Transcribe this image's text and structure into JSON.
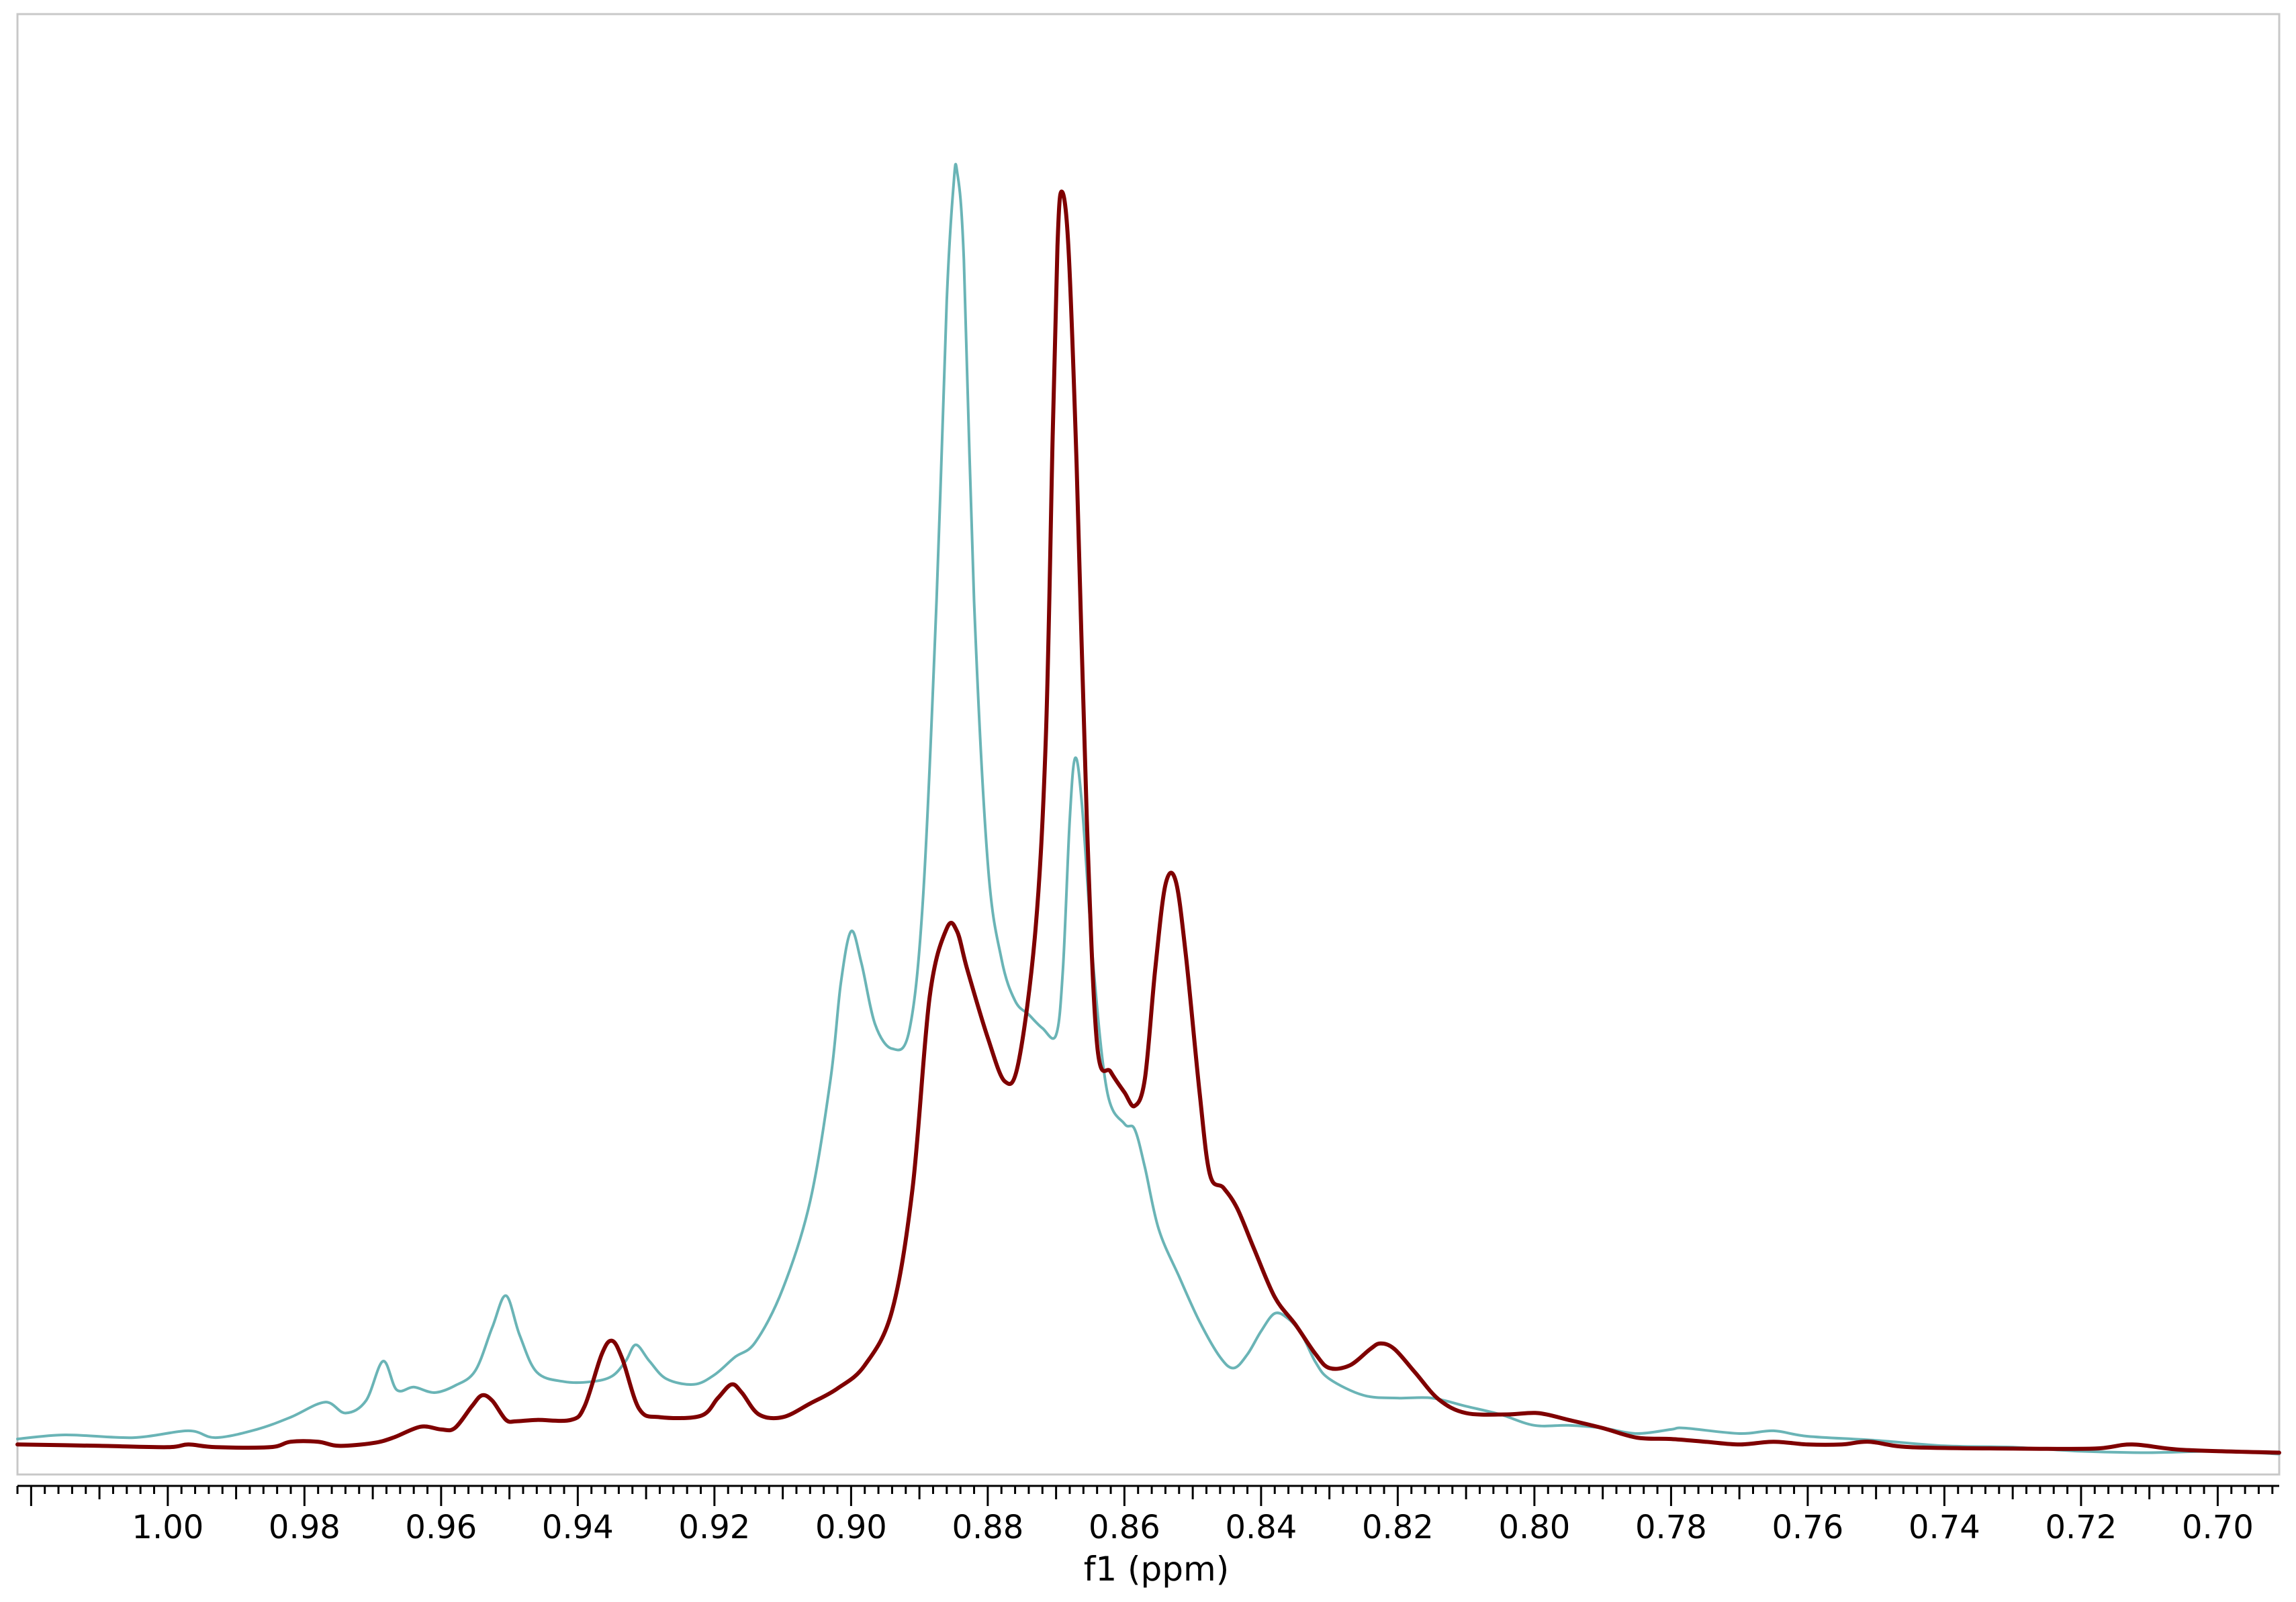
{
  "chart_data": {
    "type": "line",
    "title": "",
    "xlabel": "f1 (ppm)",
    "ylabel": "",
    "x_reversed": true,
    "xlim": [
      1.022,
      0.691
    ],
    "ylim": [
      -0.02,
      1.05
    ],
    "grid": false,
    "legend": "none",
    "x_ticks": [
      1.0,
      0.98,
      0.96,
      0.94,
      0.92,
      0.9,
      0.88,
      0.86,
      0.84,
      0.82,
      0.8,
      0.78,
      0.76,
      0.74,
      0.72,
      0.7
    ],
    "x_tick_labels": [
      "1.00",
      "0.98",
      "0.96",
      "0.94",
      "0.92",
      "0.90",
      "0.88",
      "0.86",
      "0.84",
      "0.82",
      "0.80",
      "0.78",
      "0.76",
      "0.74",
      "0.72",
      "0.70"
    ],
    "series": [
      {
        "color": "#6ab4b6",
        "stroke": "thin",
        "points": [
          [
            1.022,
            0.006
          ],
          [
            1.015,
            0.009
          ],
          [
            1.005,
            0.007
          ],
          [
            0.997,
            0.012
          ],
          [
            0.993,
            0.007
          ],
          [
            0.987,
            0.013
          ],
          [
            0.982,
            0.022
          ],
          [
            0.977,
            0.033
          ],
          [
            0.974,
            0.025
          ],
          [
            0.971,
            0.034
          ],
          [
            0.9685,
            0.063
          ],
          [
            0.9665,
            0.042
          ],
          [
            0.964,
            0.044
          ],
          [
            0.961,
            0.04
          ],
          [
            0.958,
            0.045
          ],
          [
            0.955,
            0.056
          ],
          [
            0.9525,
            0.088
          ],
          [
            0.9505,
            0.111
          ],
          [
            0.9485,
            0.082
          ],
          [
            0.946,
            0.055
          ],
          [
            0.942,
            0.048
          ],
          [
            0.938,
            0.048
          ],
          [
            0.935,
            0.052
          ],
          [
            0.933,
            0.063
          ],
          [
            0.9315,
            0.075
          ],
          [
            0.9295,
            0.063
          ],
          [
            0.927,
            0.05
          ],
          [
            0.923,
            0.046
          ],
          [
            0.92,
            0.053
          ],
          [
            0.917,
            0.066
          ],
          [
            0.914,
            0.077
          ],
          [
            0.91,
            0.116
          ],
          [
            0.906,
            0.18
          ],
          [
            0.903,
            0.27
          ],
          [
            0.9015,
            0.34
          ],
          [
            0.9,
            0.378
          ],
          [
            0.8985,
            0.355
          ],
          [
            0.8965,
            0.31
          ],
          [
            0.894,
            0.292
          ],
          [
            0.8915,
            0.305
          ],
          [
            0.8895,
            0.4
          ],
          [
            0.8875,
            0.62
          ],
          [
            0.886,
            0.84
          ],
          [
            0.885,
            0.925
          ],
          [
            0.8845,
            0.935
          ],
          [
            0.8835,
            0.87
          ],
          [
            0.882,
            0.62
          ],
          [
            0.88,
            0.428
          ],
          [
            0.878,
            0.358
          ],
          [
            0.876,
            0.327
          ],
          [
            0.874,
            0.317
          ],
          [
            0.872,
            0.307
          ],
          [
            0.87,
            0.302
          ],
          [
            0.869,
            0.35
          ],
          [
            0.868,
            0.46
          ],
          [
            0.8672,
            0.505
          ],
          [
            0.8662,
            0.47
          ],
          [
            0.8645,
            0.35
          ],
          [
            0.8625,
            0.26
          ],
          [
            0.86,
            0.237
          ],
          [
            0.8585,
            0.233
          ],
          [
            0.857,
            0.205
          ],
          [
            0.855,
            0.16
          ],
          [
            0.852,
            0.125
          ],
          [
            0.849,
            0.092
          ],
          [
            0.846,
            0.066
          ],
          [
            0.844,
            0.058
          ],
          [
            0.842,
            0.068
          ],
          [
            0.84,
            0.085
          ],
          [
            0.838,
            0.098
          ],
          [
            0.836,
            0.094
          ],
          [
            0.834,
            0.082
          ],
          [
            0.832,
            0.062
          ],
          [
            0.83,
            0.05
          ],
          [
            0.825,
            0.038
          ],
          [
            0.82,
            0.036
          ],
          [
            0.815,
            0.036
          ],
          [
            0.81,
            0.03
          ],
          [
            0.805,
            0.024
          ],
          [
            0.8,
            0.016
          ],
          [
            0.795,
            0.016
          ],
          [
            0.79,
            0.014
          ],
          [
            0.785,
            0.01
          ],
          [
            0.78,
            0.013
          ],
          [
            0.778,
            0.014
          ],
          [
            0.77,
            0.01
          ],
          [
            0.765,
            0.012
          ],
          [
            0.76,
            0.008
          ],
          [
            0.75,
            0.005
          ],
          [
            0.74,
            0.001
          ],
          [
            0.73,
            0.0
          ],
          [
            0.72,
            -0.003
          ],
          [
            0.71,
            -0.004
          ],
          [
            0.7,
            -0.003
          ],
          [
            0.691,
            -0.005
          ]
        ]
      },
      {
        "color": "#7f0000",
        "stroke": "thick",
        "points": [
          [
            1.022,
            0.002
          ],
          [
            1.01,
            0.001
          ],
          [
            1.0,
            0.0
          ],
          [
            0.997,
            0.002
          ],
          [
            0.993,
            0.0
          ],
          [
            0.985,
            0.0
          ],
          [
            0.982,
            0.004
          ],
          [
            0.978,
            0.004
          ],
          [
            0.975,
            0.001
          ],
          [
            0.97,
            0.003
          ],
          [
            0.967,
            0.007
          ],
          [
            0.963,
            0.015
          ],
          [
            0.96,
            0.013
          ],
          [
            0.958,
            0.014
          ],
          [
            0.9555,
            0.03
          ],
          [
            0.954,
            0.038
          ],
          [
            0.9525,
            0.034
          ],
          [
            0.9505,
            0.02
          ],
          [
            0.949,
            0.019
          ],
          [
            0.946,
            0.02
          ],
          [
            0.941,
            0.02
          ],
          [
            0.939,
            0.03
          ],
          [
            0.9365,
            0.068
          ],
          [
            0.935,
            0.078
          ],
          [
            0.9335,
            0.065
          ],
          [
            0.931,
            0.028
          ],
          [
            0.928,
            0.022
          ],
          [
            0.922,
            0.023
          ],
          [
            0.9195,
            0.036
          ],
          [
            0.9175,
            0.046
          ],
          [
            0.916,
            0.04
          ],
          [
            0.9135,
            0.024
          ],
          [
            0.91,
            0.022
          ],
          [
            0.906,
            0.032
          ],
          [
            0.902,
            0.043
          ],
          [
            0.898,
            0.06
          ],
          [
            0.894,
            0.1
          ],
          [
            0.891,
            0.19
          ],
          [
            0.8885,
            0.33
          ],
          [
            0.886,
            0.38
          ],
          [
            0.8845,
            0.378
          ],
          [
            0.883,
            0.35
          ],
          [
            0.88,
            0.3
          ],
          [
            0.8775,
            0.268
          ],
          [
            0.8755,
            0.282
          ],
          [
            0.873,
            0.38
          ],
          [
            0.8715,
            0.52
          ],
          [
            0.8705,
            0.74
          ],
          [
            0.8698,
            0.88
          ],
          [
            0.8692,
            0.92
          ],
          [
            0.8682,
            0.88
          ],
          [
            0.867,
            0.72
          ],
          [
            0.8655,
            0.46
          ],
          [
            0.864,
            0.295
          ],
          [
            0.862,
            0.275
          ],
          [
            0.86,
            0.26
          ],
          [
            0.8585,
            0.25
          ],
          [
            0.857,
            0.27
          ],
          [
            0.8555,
            0.35
          ],
          [
            0.854,
            0.412
          ],
          [
            0.8525,
            0.415
          ],
          [
            0.851,
            0.36
          ],
          [
            0.849,
            0.26
          ],
          [
            0.8475,
            0.2
          ],
          [
            0.8455,
            0.19
          ],
          [
            0.8435,
            0.175
          ],
          [
            0.841,
            0.145
          ],
          [
            0.838,
            0.11
          ],
          [
            0.835,
            0.09
          ],
          [
            0.832,
            0.068
          ],
          [
            0.83,
            0.058
          ],
          [
            0.827,
            0.06
          ],
          [
            0.824,
            0.072
          ],
          [
            0.8225,
            0.076
          ],
          [
            0.8205,
            0.072
          ],
          [
            0.8175,
            0.055
          ],
          [
            0.814,
            0.035
          ],
          [
            0.81,
            0.025
          ],
          [
            0.804,
            0.024
          ],
          [
            0.7995,
            0.025
          ],
          [
            0.795,
            0.02
          ],
          [
            0.79,
            0.014
          ],
          [
            0.785,
            0.007
          ],
          [
            0.78,
            0.006
          ],
          [
            0.775,
            0.004
          ],
          [
            0.77,
            0.002
          ],
          [
            0.765,
            0.004
          ],
          [
            0.76,
            0.002
          ],
          [
            0.755,
            0.002
          ],
          [
            0.751,
            0.004
          ],
          [
            0.745,
            0.0
          ],
          [
            0.73,
            -0.001
          ],
          [
            0.718,
            -0.001
          ],
          [
            0.7125,
            0.002
          ],
          [
            0.705,
            -0.002
          ],
          [
            0.691,
            -0.004
          ]
        ]
      }
    ]
  }
}
